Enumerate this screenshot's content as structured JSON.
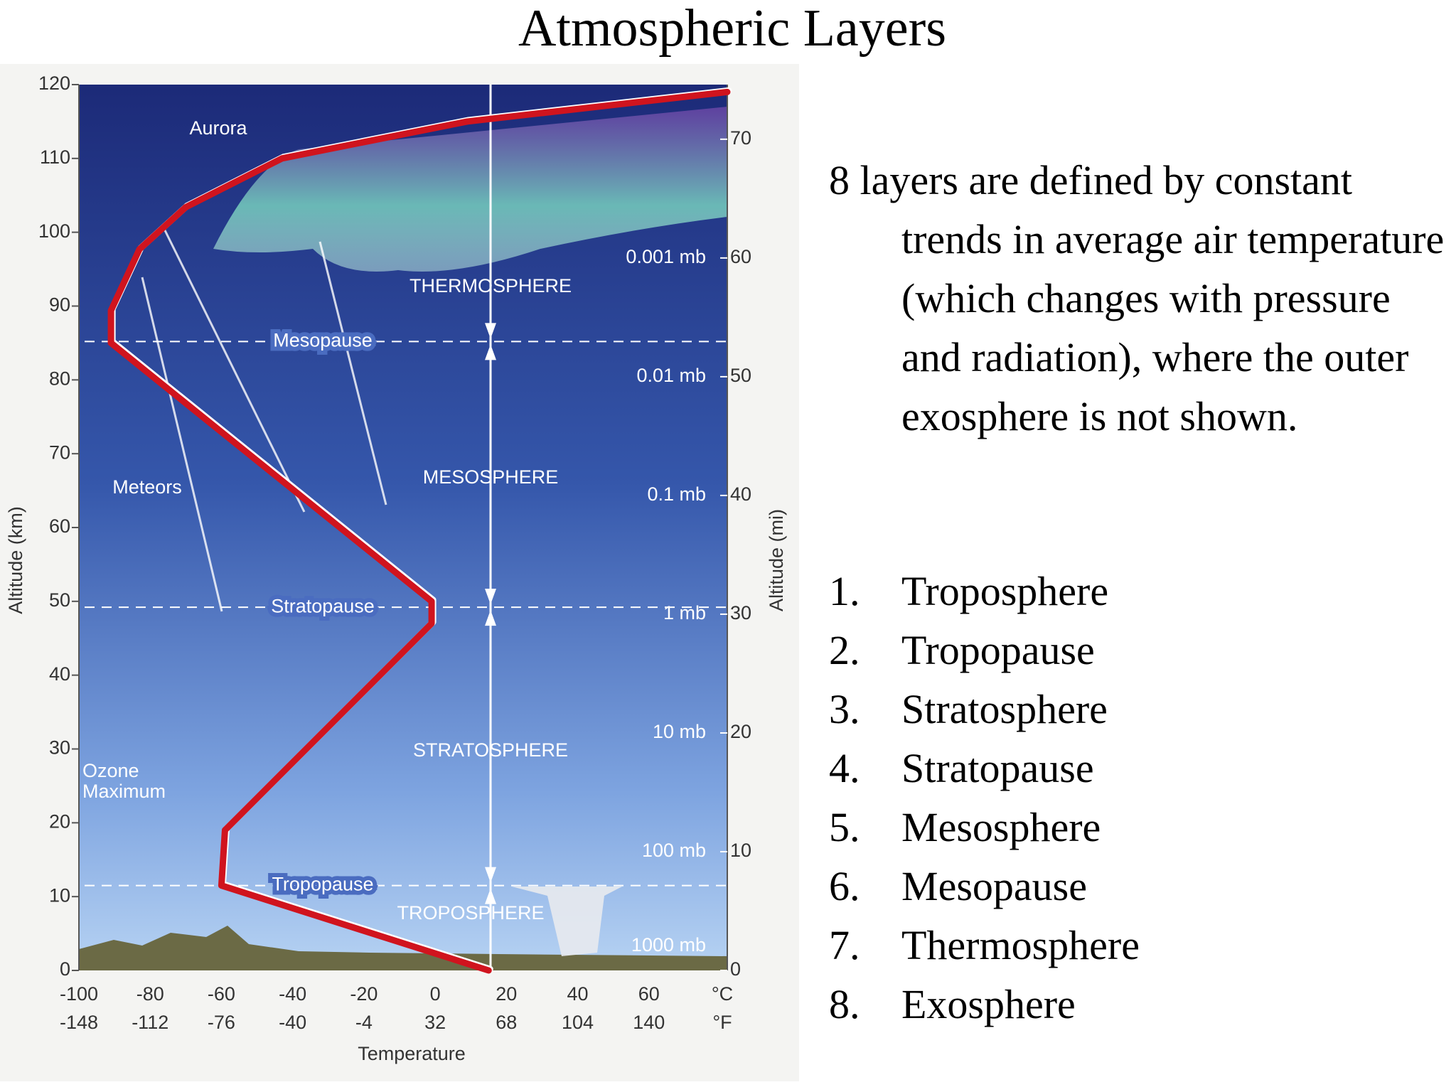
{
  "title": "Atmospheric Layers",
  "description": "8 layers are defined by constant trends in average air temperature (which changes with pressure and radiation), where the outer exosphere is not shown.",
  "list": [
    {
      "marker": "1.",
      "text": "Troposphere"
    },
    {
      "marker": "2.",
      "text": "Tropopause"
    },
    {
      "marker": "3.",
      "text": "Stratosphere"
    },
    {
      "marker": "4.",
      "text": "Stratopause"
    },
    {
      "marker": "5.",
      "text": "Mesosphere"
    },
    {
      "marker": "6.",
      "text": "Mesopause"
    },
    {
      "marker": "7.",
      "text": "Thermosphere"
    },
    {
      "marker": "8.",
      "text": "Exosphere"
    }
  ],
  "chart_data": {
    "type": "line",
    "x_label": "Temperature",
    "y_label": "Altitude (km)",
    "y2_label": "Altitude (mi)",
    "x_unit": "°C",
    "x2_unit": "°F",
    "xlim": [
      -100,
      82
    ],
    "xticks": [
      -100,
      -80,
      -60,
      -40,
      -20,
      0,
      20,
      40,
      60
    ],
    "x2lim": [
      -148,
      179.6
    ],
    "x2ticks": [
      -148,
      -112,
      -76,
      -40,
      -4,
      32,
      68,
      104,
      140
    ],
    "ylim": [
      0,
      120
    ],
    "yticks": [
      0,
      10,
      20,
      30,
      40,
      50,
      60,
      70,
      80,
      90,
      100,
      110,
      120
    ],
    "y2lim": [
      0,
      74.6
    ],
    "y2ticks": [
      0,
      10,
      20,
      30,
      40,
      50,
      60,
      70
    ],
    "pressure_labels": [
      "1000 mb",
      "100 mb",
      "10 mb",
      "1 mb",
      "0.1 mb",
      "0.01 mb",
      "0.001 mb"
    ],
    "series": [
      {
        "color": "#d0141e",
        "x": [
          15,
          -60,
          -59,
          -1,
          -1,
          -91,
          -91,
          -83,
          -70,
          -43,
          9,
          82
        ],
        "values": [
          0,
          11.5,
          19,
          47,
          50,
          85,
          89.4,
          97.7,
          103.4,
          110,
          115,
          119
        ]
      }
    ],
    "boundaries": [
      {
        "label": "Tropopause",
        "altitude": 11.5
      },
      {
        "label": "Stratopause",
        "altitude": 49.2
      },
      {
        "label": "Mesopause",
        "altitude": 85.2
      }
    ],
    "layer_labels": [
      "TROPOSPHERE",
      "STRATOSPHERE",
      "MESOSPHERE",
      "THERMOSPHERE"
    ],
    "annotations": {
      "aurora": "Aurora",
      "meteors": "Meteors",
      "ozone": [
        "Ozone",
        "Maximum"
      ]
    }
  }
}
